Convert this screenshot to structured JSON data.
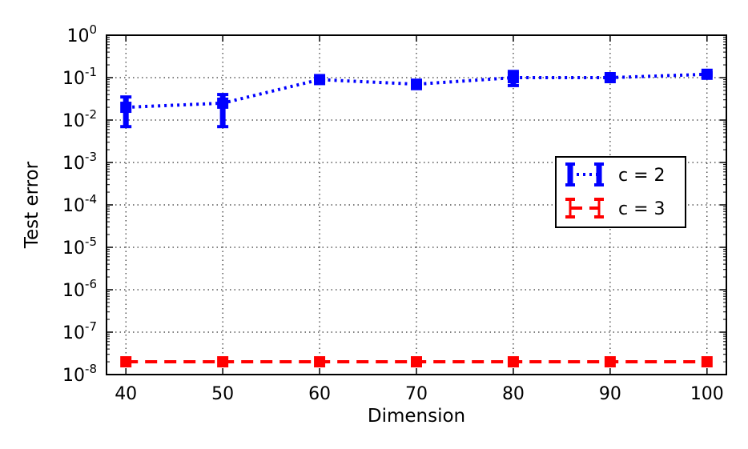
{
  "chart_data": {
    "type": "line",
    "xlabel": "Dimension",
    "ylabel": "Test error",
    "x": [
      40,
      50,
      60,
      70,
      80,
      90,
      100
    ],
    "xlim": [
      38,
      102
    ],
    "ylim": [
      1e-08,
      1
    ],
    "yscale": "log",
    "grid": true,
    "legend_position": "right",
    "x_ticks": [
      "40",
      "50",
      "60",
      "70",
      "80",
      "90",
      "100"
    ],
    "y_ticks": [
      {
        "value": 1,
        "base": "10",
        "exp": "0"
      },
      {
        "value": 0.1,
        "base": "10",
        "exp": "-1"
      },
      {
        "value": 0.01,
        "base": "10",
        "exp": "-2"
      },
      {
        "value": 0.001,
        "base": "10",
        "exp": "-3"
      },
      {
        "value": 0.0001,
        "base": "10",
        "exp": "-4"
      },
      {
        "value": 1e-05,
        "base": "10",
        "exp": "-5"
      },
      {
        "value": 1e-06,
        "base": "10",
        "exp": "-6"
      },
      {
        "value": 1e-07,
        "base": "10",
        "exp": "-7"
      },
      {
        "value": 1e-08,
        "base": "10",
        "exp": "-8"
      }
    ],
    "series": [
      {
        "name": "c = 2",
        "color": "#0000ff",
        "line_style": "dotted",
        "values": [
          0.02,
          0.025,
          0.09,
          0.07,
          0.1,
          0.1,
          0.12
        ],
        "error_low": [
          0.007,
          0.007,
          0.085,
          0.055,
          0.065,
          0.095,
          0.11
        ],
        "error_high": [
          0.035,
          0.04,
          0.095,
          0.085,
          0.14,
          0.105,
          0.13
        ]
      },
      {
        "name": "c = 3",
        "color": "#ff0000",
        "line_style": "dashed",
        "values": [
          2e-08,
          2e-08,
          2e-08,
          2e-08,
          2e-08,
          2e-08,
          2e-08
        ],
        "error_low": [
          2e-08,
          2e-08,
          2e-08,
          2e-08,
          2e-08,
          2e-08,
          2e-08
        ],
        "error_high": [
          2e-08,
          2e-08,
          2e-08,
          2e-08,
          2e-08,
          2e-08,
          2e-08
        ]
      }
    ]
  }
}
